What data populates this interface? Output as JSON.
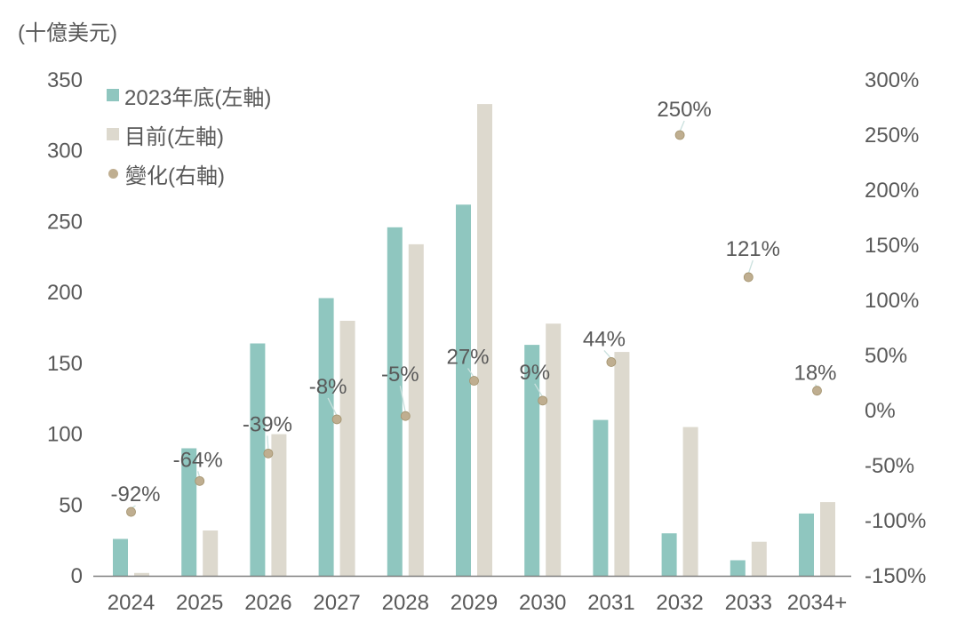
{
  "title_unit": "(十億美元)",
  "colors": {
    "bar_2023": "#8FC6BF",
    "bar_current": "#DDD9CE",
    "change_dot": "#BFAE90",
    "change_dot_edge": "#A4946F",
    "text": "#595959",
    "axis_line": "#7F7F7F",
    "leader_line": "#C9E0DD",
    "background": "#FFFFFF"
  },
  "legend": {
    "items": [
      {
        "label": "2023年底(左軸)",
        "marker": "square",
        "color": "#8FC6BF"
      },
      {
        "label": "目前(左軸)",
        "marker": "square",
        "color": "#DDD9CE"
      },
      {
        "label": "變化(右軸)",
        "marker": "circle",
        "color": "#BFAE90"
      }
    ]
  },
  "chart_data": {
    "type": "bar",
    "subtype": "dual-axis combo: grouped bars (left axis) + scatter dots (right axis)",
    "title": "(十億美元)",
    "categories": [
      "2024",
      "2025",
      "2026",
      "2027",
      "2028",
      "2029",
      "2030",
      "2031",
      "2032",
      "2033",
      "2034+"
    ],
    "series": [
      {
        "name": "2023年底(左軸)",
        "type": "bar",
        "axis": "left",
        "color": "#8FC6BF",
        "values": [
          26,
          90,
          164,
          196,
          246,
          262,
          163,
          110,
          30,
          11,
          44
        ]
      },
      {
        "name": "目前(左軸)",
        "type": "bar",
        "axis": "left",
        "color": "#DDD9CE",
        "values": [
          2,
          32,
          100,
          180,
          234,
          333,
          178,
          158,
          105,
          24,
          52
        ]
      },
      {
        "name": "變化(右軸)",
        "type": "scatter",
        "axis": "right",
        "color": "#BFAE90",
        "values": [
          -92,
          -64,
          -39,
          -8,
          -5,
          27,
          9,
          44,
          250,
          121,
          18
        ],
        "labels": [
          "-92%",
          "-64%",
          "-39%",
          "-8%",
          "-5%",
          "27%",
          "9%",
          "44%",
          "250%",
          "121%",
          "18%"
        ]
      }
    ],
    "left_axis": {
      "unit": "(十億美元)",
      "min": 0,
      "max": 350,
      "step": 50,
      "ticks": [
        350,
        300,
        250,
        200,
        150,
        100,
        50,
        0
      ],
      "tick_labels": [
        "350",
        "300",
        "250",
        "200",
        "150",
        "100",
        "50",
        "0"
      ]
    },
    "right_axis": {
      "min": -150,
      "max": 300,
      "step": 50,
      "ticks": [
        300,
        250,
        200,
        150,
        100,
        50,
        0,
        -50,
        -100,
        -150
      ],
      "tick_labels": [
        "300%",
        "250%",
        "200%",
        "150%",
        "100%",
        "50%",
        "0%",
        "-50%",
        "-100%",
        "-150%"
      ]
    },
    "grid": false,
    "legend_position": "top-left-inside"
  }
}
